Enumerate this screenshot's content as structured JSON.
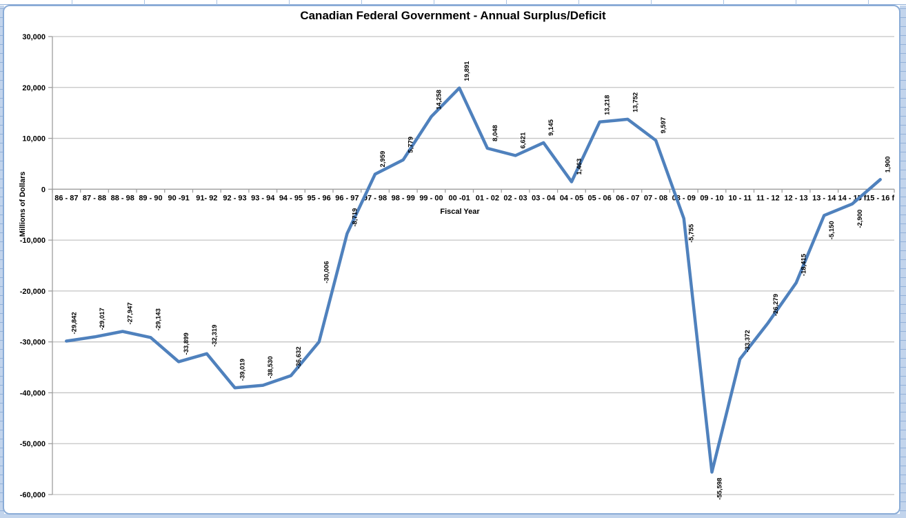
{
  "chart_data": {
    "type": "line",
    "title": "Canadian Federal Government - Annual Surplus/Deficit",
    "xlabel": "Fiscal Year",
    "ylabel": "Millions of Dollars",
    "categories": [
      "86 - 87",
      "87 - 88",
      "88 - 98",
      "89 - 90",
      "90 -91",
      "91- 92",
      "92 - 93",
      "93 - 94",
      "94 - 95",
      "95 - 96",
      "96 - 97",
      "97 - 98",
      "98 - 99",
      "99 - 00",
      "00 -01",
      "01 - 02",
      "02 - 03",
      "03 - 04",
      "04 - 05",
      "05 - 06",
      "06 - 07",
      "07 - 08",
      "08 - 09",
      "09 - 10",
      "10 - 11",
      "11 - 12",
      "12 - 13",
      "13 - 14",
      "14 - 15 f",
      "15 - 16 f"
    ],
    "values": [
      -29842,
      -29017,
      -27947,
      -29143,
      -33899,
      -32319,
      -39019,
      -38530,
      -36632,
      -30006,
      -8719,
      2959,
      5779,
      14258,
      19891,
      8048,
      6621,
      9145,
      1463,
      13218,
      13752,
      9597,
      -5755,
      -55598,
      -33372,
      -26279,
      -18415,
      -5150,
      -2900,
      1900
    ],
    "point_labels": [
      "-29,842",
      "-29,017",
      "-27,947",
      "-29,143",
      "-33,899",
      "-32,319",
      "-39,019",
      "-38,530",
      "-36,632",
      "-30,006",
      "-8,719",
      "2,959",
      "5,779",
      "14,258",
      "19,891",
      "8,048",
      "6,621",
      "9,145",
      "1,463",
      "13,218",
      "13,752",
      "9,597",
      "-5,755",
      "-55,598",
      "-33,372",
      "-26,279",
      "-18,415",
      "-5,150",
      "-2,900",
      "1,900"
    ],
    "ylim": [
      -60000,
      30000
    ],
    "ytick_step": 10000,
    "ytick_labels": [
      "30,000",
      "20,000",
      "10,000",
      "0",
      "-10,000",
      "-20,000",
      "-30,000",
      "-40,000",
      "-50,000",
      "-60,000"
    ],
    "grid": "horizontal",
    "legend": "none",
    "colors": {
      "series_line": "#4F81BD",
      "gridline": "#c4c4c4",
      "axis_line": "#9d9d9d",
      "text": "#000000",
      "chart_border": "#89abd6",
      "sheet_fill": "#c2d4ec",
      "sheet_gridline": "#93b1d9"
    },
    "label_below_indices": [
      22,
      23,
      27,
      28
    ],
    "label_offset_overrides": {
      "9": -75
    }
  }
}
